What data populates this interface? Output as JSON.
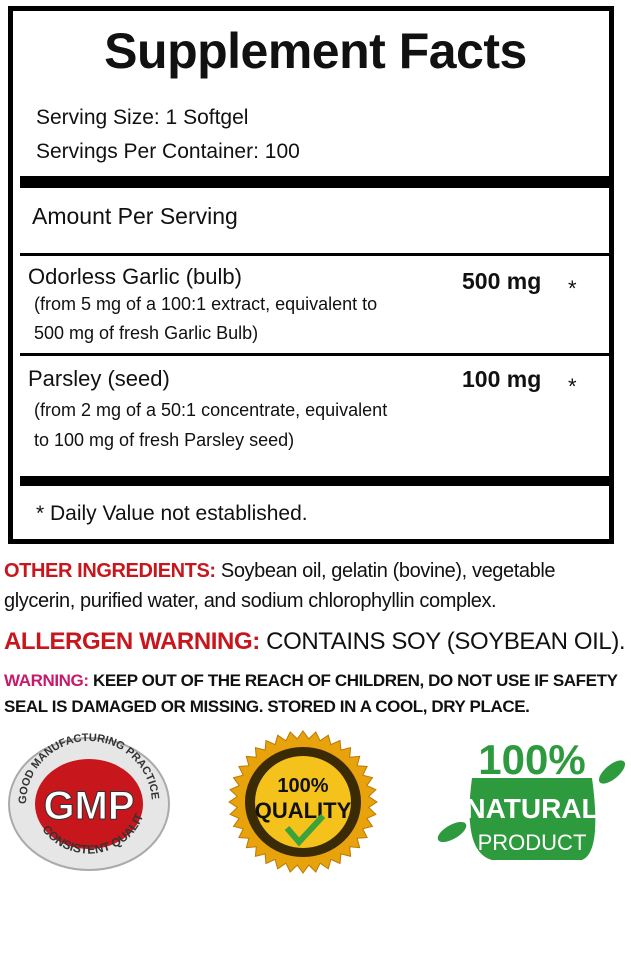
{
  "facts": {
    "title": "Supplement Facts",
    "serving_size": "Serving Size: 1 Softgel",
    "servings_per_container": "Servings Per Container: 100",
    "amount_per_serving": "Amount Per Serving",
    "ingredients": [
      {
        "name": "Odorless Garlic (bulb)",
        "detail_1": "(from 5 mg of a 100:1 extract, equivalent to",
        "detail_2": "500 mg of fresh Garlic Bulb)",
        "amount": "500 mg",
        "dv": "*"
      },
      {
        "name": "Parsley (seed)",
        "detail_1": "(from 2 mg of a 50:1 concentrate, equivalent",
        "detail_2": "to 100 mg of fresh Parsley seed)",
        "amount": "100 mg",
        "dv": "*"
      }
    ],
    "footnote": "* Daily Value not established."
  },
  "other_ingredients": {
    "label": "OTHER INGREDIENTS:",
    "line1": "Soybean oil, gelatin (bovine), vegetable",
    "line2": "glycerin,  purified  water,  and sodium  chlorophyllin complex."
  },
  "allergen": {
    "label": "ALLERGEN WARNING:",
    "text": "CONTAINS SOY (SOYBEAN OIL)."
  },
  "warning": {
    "label": "WARNING:",
    "line1": "KEEP OUT OF THE REACH OF CHILDREN, DO NOT USE IF",
    "line2": "SAFETY  SEAL  IS  DAMAGED  OR MISSING. STORED IN A COOL, DRY",
    "line3": "PLACE."
  },
  "badges": {
    "gmp": {
      "top": "GOOD MANUFACTURING PRACTICE",
      "center": "GMP",
      "bottom": "CONSISTENT QUALITY"
    },
    "quality": {
      "top": "100%",
      "center": "QUALITY"
    },
    "natural": {
      "top": "100%",
      "center": "NATURAL",
      "bottom": "PRODUCT"
    }
  },
  "colors": {
    "red": "#c8161d",
    "pink": "#c81a6a",
    "green": "#2e9a3e",
    "gold": "#e8a20c"
  }
}
